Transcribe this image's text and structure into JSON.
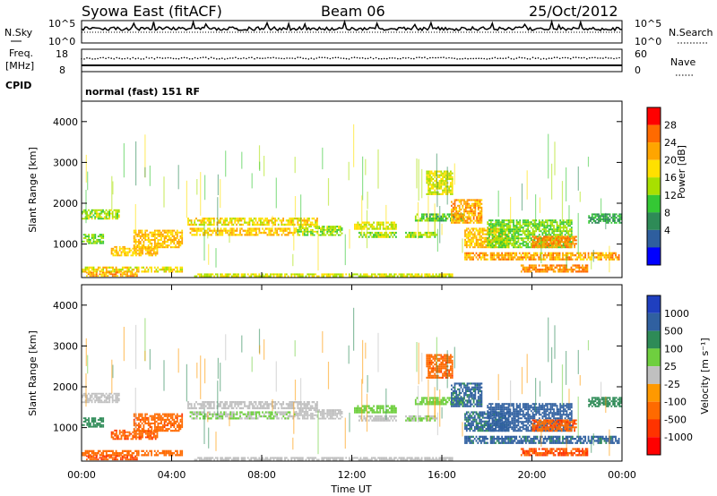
{
  "header": {
    "station": "Syowa East (fitACF)",
    "beam": "Beam 06",
    "date": "25/Oct/2012"
  },
  "nsky_panel": {
    "left_label": "N.Sky",
    "right_label": "N.Search",
    "tick_top": "10^5",
    "tick_bottom": "10^0"
  },
  "freq_panel": {
    "label_line1": "Freq.",
    "label_line2": "[MHz]",
    "ticks": [
      "18",
      "8"
    ],
    "right_label": "Nave",
    "right_ticks": [
      "60",
      "0"
    ]
  },
  "cpid_panel": {
    "label": "CPID",
    "text": "normal (fast) 151 RF"
  },
  "power_panel": {
    "ylabel": "Slant Range [km]",
    "yticks": [
      "4000",
      "3000",
      "2000",
      "1000"
    ],
    "cbar_label": "Power [dB]",
    "cbar_ticks": [
      "28",
      "24",
      "20",
      "16",
      "12",
      "8",
      "4"
    ],
    "cbar_colors": [
      "#ff0000",
      "#ff6a00",
      "#ffa500",
      "#ffe000",
      "#a8e000",
      "#34c834",
      "#2e8b57",
      "#2e5e9e",
      "#0000ff"
    ]
  },
  "velocity_panel": {
    "ylabel": "Slant Range [km]",
    "yticks": [
      "4000",
      "3000",
      "2000",
      "1000"
    ],
    "cbar_label": "Velocity [m s⁻¹]",
    "cbar_ticks": [
      "1000",
      "500",
      "100",
      "25",
      "-25",
      "-100",
      "-500",
      "-1000"
    ],
    "cbar_colors": [
      "#1f3fbf",
      "#3060a0",
      "#2e8b57",
      "#6fcf3f",
      "#c0c0c0",
      "#ff9900",
      "#ff6a00",
      "#ff3300",
      "#ff0000"
    ]
  },
  "x_axis": {
    "label": "Time UT",
    "ticks": [
      "00:00",
      "04:00",
      "08:00",
      "12:00",
      "16:00",
      "20:00",
      "00:00"
    ]
  },
  "chart_data": {
    "type": "heatmap",
    "title": "Syowa East (fitACF) Beam 06 25/Oct/2012",
    "xlabel": "Time UT",
    "ylabel": "Slant Range [km]",
    "xlim_hours": [
      0,
      24
    ],
    "ylim_km": [
      180,
      4500
    ],
    "grid": false,
    "legend": "colorbar-right",
    "bands": [
      {
        "t0": 0.0,
        "t1": 1.7,
        "r0": 1600,
        "r1": 1850,
        "p": 14,
        "v": -15
      },
      {
        "t0": 0.0,
        "t1": 1.0,
        "r0": 1000,
        "r1": 1250,
        "p": 12,
        "v": 60
      },
      {
        "t0": 0.0,
        "t1": 4.5,
        "r0": 300,
        "r1": 450,
        "p": 18,
        "v": -300
      },
      {
        "t0": 0.2,
        "t1": 2.5,
        "r0": 200,
        "r1": 320,
        "p": 22,
        "v": -500
      },
      {
        "t0": 1.3,
        "t1": 3.4,
        "r0": 700,
        "r1": 950,
        "p": 20,
        "v": -400
      },
      {
        "t0": 2.3,
        "t1": 4.5,
        "r0": 900,
        "r1": 1350,
        "p": 20,
        "v": -350
      },
      {
        "t0": 4.7,
        "t1": 10.5,
        "r0": 1450,
        "r1": 1650,
        "p": 18,
        "v": -10
      },
      {
        "t0": 4.8,
        "t1": 9.5,
        "r0": 1200,
        "r1": 1400,
        "p": 20,
        "v": 5
      },
      {
        "t0": 9.5,
        "t1": 11.6,
        "r0": 1200,
        "r1": 1450,
        "p": 14,
        "v": -5
      },
      {
        "t0": 12.1,
        "t1": 14.0,
        "r0": 1350,
        "r1": 1550,
        "p": 16,
        "v": 10
      },
      {
        "t0": 12.3,
        "t1": 14.0,
        "r0": 1150,
        "r1": 1300,
        "p": 14,
        "v": -10
      },
      {
        "t0": 14.3,
        "t1": 15.8,
        "r0": 1150,
        "r1": 1300,
        "p": 14,
        "v": 5
      },
      {
        "t0": 14.8,
        "t1": 17.0,
        "r0": 1550,
        "r1": 1750,
        "p": 10,
        "v": 10
      },
      {
        "t0": 15.3,
        "t1": 16.5,
        "r0": 2200,
        "r1": 2800,
        "p": 16,
        "v": -350
      },
      {
        "t0": 16.4,
        "t1": 17.8,
        "r0": 1500,
        "r1": 2100,
        "p": 22,
        "v": 150
      },
      {
        "t0": 17.0,
        "t1": 19.0,
        "r0": 900,
        "r1": 1400,
        "p": 20,
        "v": 120
      },
      {
        "t0": 17.0,
        "t1": 23.9,
        "r0": 600,
        "r1": 800,
        "p": 22,
        "v": 150
      },
      {
        "t0": 18.0,
        "t1": 21.8,
        "r0": 900,
        "r1": 1600,
        "p": 12,
        "v": 200
      },
      {
        "t0": 19.5,
        "t1": 22.5,
        "r0": 300,
        "r1": 500,
        "p": 24,
        "v": -500
      },
      {
        "t0": 20.0,
        "t1": 22.0,
        "r0": 900,
        "r1": 1200,
        "p": 24,
        "v": -400
      },
      {
        "t0": 5.0,
        "t1": 16.5,
        "r0": 190,
        "r1": 280,
        "p": 16,
        "v": 0
      },
      {
        "t0": 22.5,
        "t1": 24.0,
        "r0": 1500,
        "r1": 1750,
        "p": 8,
        "v": 50
      }
    ]
  }
}
